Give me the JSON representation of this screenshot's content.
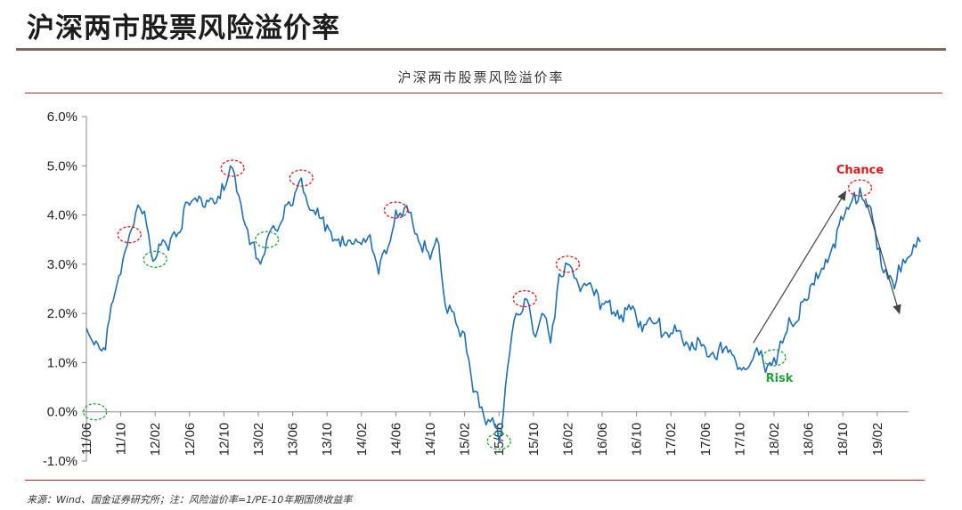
{
  "page": {
    "title": "沪深两市股票风险溢价率",
    "source": "来源：Wind、国金证券研究所；注：风险溢价率=1/PE-10年期国债收益率"
  },
  "colors": {
    "line": "#1f6fb5",
    "peak": "#e0181c",
    "trough": "#22a33a",
    "arrow": "#444444",
    "rule": "#c0272d"
  },
  "chart_data": {
    "type": "line",
    "title": "沪深两市股票风险溢价率",
    "xlabel": "",
    "ylabel": "",
    "ylim": [
      -1.0,
      6.0
    ],
    "yticks": [
      "6.0%",
      "5.0%",
      "4.0%",
      "3.0%",
      "2.0%",
      "1.0%",
      "0.0%",
      "-1.0%"
    ],
    "xticks": [
      "11/06",
      "11/10",
      "12/02",
      "12/06",
      "12/10",
      "13/02",
      "13/06",
      "13/10",
      "14/02",
      "14/06",
      "14/10",
      "15/02",
      "15/06",
      "15/10",
      "16/02",
      "16/06",
      "16/10",
      "17/02",
      "17/06",
      "17/10",
      "18/02",
      "18/06",
      "18/10",
      "19/02"
    ],
    "grid": false,
    "legend": "none",
    "series": [
      {
        "x": [
          "11/06",
          "11/08",
          "11/10",
          "11/11",
          "11/12",
          "12/01",
          "12/02",
          "12/04",
          "12/06",
          "12/08",
          "12/10",
          "12/11",
          "12/12",
          "13/01",
          "13/02",
          "13/03",
          "13/04",
          "13/06",
          "13/07",
          "13/08",
          "13/10",
          "13/12",
          "14/02",
          "14/03",
          "14/04",
          "14/06",
          "14/07",
          "14/08",
          "14/10",
          "14/11",
          "14/12",
          "15/01",
          "15/02",
          "15/03",
          "15/04",
          "15/05",
          "15/06",
          "15/07",
          "15/08",
          "15/09",
          "15/10",
          "15/11",
          "15/12",
          "16/01",
          "16/02",
          "16/03",
          "16/06",
          "16/10",
          "17/02",
          "17/06",
          "17/08",
          "17/10",
          "17/12",
          "18/01",
          "18/02",
          "18/03",
          "18/04",
          "18/06",
          "18/08",
          "18/10",
          "18/12",
          "19/01",
          "19/02",
          "19/03",
          "19/04",
          "19/05",
          "19/06",
          "19/07"
        ],
        "values": [
          1.7,
          1.3,
          2.8,
          3.6,
          4.2,
          3.8,
          3.1,
          3.6,
          4.2,
          4.3,
          4.5,
          4.95,
          4.2,
          3.4,
          3.1,
          3.5,
          3.7,
          4.2,
          4.75,
          4.1,
          3.8,
          3.4,
          3.4,
          3.6,
          2.8,
          4.1,
          4.15,
          3.8,
          3.1,
          3.4,
          2.0,
          1.8,
          1.6,
          0.4,
          0.1,
          -0.2,
          -0.6,
          0.9,
          2.0,
          2.3,
          1.6,
          2.0,
          1.4,
          2.8,
          3.0,
          2.7,
          2.2,
          1.9,
          1.6,
          1.3,
          1.2,
          0.9,
          1.3,
          0.8,
          1.1,
          1.4,
          1.8,
          2.3,
          3.1,
          3.9,
          4.55,
          4.2,
          3.3,
          2.9,
          2.5,
          3.1,
          3.2,
          3.45
        ]
      }
    ],
    "annotations": [
      {
        "text": "Chance",
        "type": "label",
        "color": "peak"
      },
      {
        "text": "Risk",
        "type": "label",
        "color": "trough"
      }
    ],
    "peaks": [
      "11/11",
      "12/11",
      "13/07",
      "14/06",
      "15/09",
      "16/02",
      "18/12"
    ],
    "troughs": [
      "11/07",
      "12/02",
      "13/03",
      "15/06",
      "18/02"
    ]
  }
}
